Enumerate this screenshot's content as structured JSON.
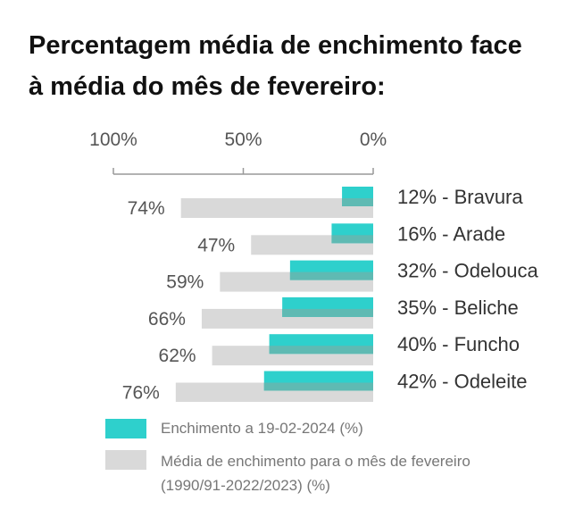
{
  "title": {
    "line1": "Percentagem média de enchimento face",
    "line2": "à média do mês de fevereiro:"
  },
  "chart_data": {
    "type": "bar",
    "orientation": "horizontal",
    "x_axis": {
      "direction": "reversed",
      "ticks": [
        "100%",
        "50%",
        "0%"
      ],
      "tick_values": [
        100,
        50,
        0
      ],
      "range": [
        0,
        100
      ]
    },
    "categories": [
      "12% - Bravura",
      "16% - Arade",
      "32% - Odelouca",
      "35% - Beliche",
      "40% - Funcho",
      "42% - Odeleite"
    ],
    "series": [
      {
        "name": "Enchimento a 19-02-2024 (%)",
        "values": [
          12,
          16,
          32,
          35,
          40,
          42
        ],
        "color": "#2ED0CC"
      },
      {
        "name": "Média de enchimento para o mês de fevereiro (1990/91-2022/2023) (%)",
        "values": [
          74,
          47,
          59,
          66,
          62,
          76
        ],
        "labels": [
          "74%",
          "47%",
          "59%",
          "66%",
          "62%",
          "76%"
        ],
        "color": "#D9D9D9"
      }
    ],
    "overlap_color": "#5FBAB3"
  },
  "legend": {
    "current": "Enchimento a 19-02-2024 (%)",
    "average_line1": "Média de enchimento para o mês de fevereiro",
    "average_line2": "(1990/91-2022/2023) (%)"
  }
}
